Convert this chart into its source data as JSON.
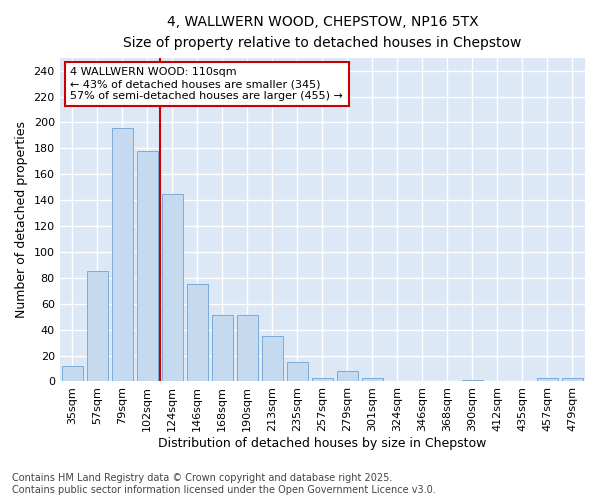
{
  "title": "4, WALLWERN WOOD, CHEPSTOW, NP16 5TX",
  "subtitle": "Size of property relative to detached houses in Chepstow",
  "xlabel": "Distribution of detached houses by size in Chepstow",
  "ylabel": "Number of detached properties",
  "bar_color": "#c5d9ef",
  "bar_edge_color": "#7aabda",
  "background_color": "#dce8f5",
  "grid_color": "#ffffff",
  "categories": [
    "35sqm",
    "57sqm",
    "79sqm",
    "102sqm",
    "124sqm",
    "146sqm",
    "168sqm",
    "190sqm",
    "213sqm",
    "235sqm",
    "257sqm",
    "279sqm",
    "301sqm",
    "324sqm",
    "346sqm",
    "368sqm",
    "390sqm",
    "412sqm",
    "435sqm",
    "457sqm",
    "479sqm"
  ],
  "values": [
    12,
    85,
    196,
    178,
    145,
    75,
    51,
    51,
    35,
    15,
    3,
    8,
    3,
    0,
    0,
    0,
    1,
    0,
    0,
    3,
    3
  ],
  "ylim": [
    0,
    250
  ],
  "yticks": [
    0,
    20,
    40,
    60,
    80,
    100,
    120,
    140,
    160,
    180,
    200,
    220,
    240
  ],
  "vline_x": 3.5,
  "vline_color": "#cc0000",
  "annotation_text": "4 WALLWERN WOOD: 110sqm\n← 43% of detached houses are smaller (345)\n57% of semi-detached houses are larger (455) →",
  "annotation_box_color": "#ffffff",
  "annotation_box_edge": "#cc0000",
  "footer": "Contains HM Land Registry data © Crown copyright and database right 2025.\nContains public sector information licensed under the Open Government Licence v3.0.",
  "title_fontsize": 10,
  "subtitle_fontsize": 9,
  "axis_label_fontsize": 9,
  "tick_fontsize": 8,
  "annotation_fontsize": 8,
  "footer_fontsize": 7
}
